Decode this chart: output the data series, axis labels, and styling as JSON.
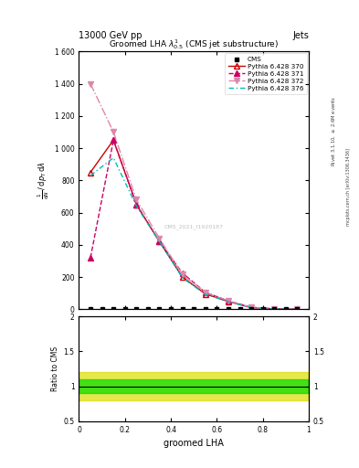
{
  "title_top": "13000 GeV pp",
  "title_right": "Jets",
  "plot_title": "Groomed LHA $\\lambda^{1}_{0.5}$ (CMS jet substructure)",
  "xlabel": "groomed LHA",
  "ylabel_main": "$\\frac{1}{\\mathrm{d}N}\\,/\\,\\mathrm{d}p_\\mathrm{T}\\,\\mathrm{d}\\lambda$",
  "ylabel_ratio": "Ratio to CMS",
  "right_label1": "Rivet 3.1.10, $\\geq$ 2.6M events",
  "right_label2": "mcplots.cern.ch [arXiv:1306.3436]",
  "watermark": "CMS_2021_I1920187",
  "p370_x": [
    0.05,
    0.15,
    0.25,
    0.35,
    0.45,
    0.55,
    0.65,
    0.75,
    0.85,
    0.95
  ],
  "p370_y": [
    850,
    1050,
    650,
    420,
    200,
    95,
    48,
    10,
    2,
    0.5
  ],
  "p371_x": [
    0.05,
    0.15,
    0.25,
    0.35,
    0.45,
    0.55,
    0.65,
    0.75,
    0.85,
    0.95
  ],
  "p371_y": [
    320,
    1050,
    650,
    420,
    225,
    105,
    52,
    12,
    2.5,
    0.5
  ],
  "p372_x": [
    0.05,
    0.15,
    0.25,
    0.35,
    0.45,
    0.55,
    0.65,
    0.75,
    0.85,
    0.95
  ],
  "p372_y": [
    1400,
    1100,
    680,
    440,
    215,
    105,
    52,
    12,
    2.5,
    0.5
  ],
  "p376_x": [
    0.05,
    0.15,
    0.25,
    0.35,
    0.45,
    0.55,
    0.65,
    0.75,
    0.85,
    0.95
  ],
  "p376_y": [
    830,
    940,
    640,
    420,
    195,
    93,
    47,
    10,
    2,
    0.5
  ],
  "cms_x": [
    0.05,
    0.1,
    0.15,
    0.2,
    0.25,
    0.3,
    0.35,
    0.4,
    0.45,
    0.5,
    0.55,
    0.6,
    0.65,
    0.7,
    0.75,
    0.8,
    0.85,
    0.9,
    0.95
  ],
  "ylim_main": [
    0,
    1600
  ],
  "ylim_ratio": [
    0.5,
    2.0
  ],
  "ratio_green_lo": 0.9,
  "ratio_green_hi": 1.1,
  "ratio_yellow_lo": 0.8,
  "ratio_yellow_hi": 1.2,
  "color_cms": "#000000",
  "color_370": "#cc0000",
  "color_371": "#cc0066",
  "color_372": "#dd88aa",
  "color_376": "#00bbbb",
  "color_green": "#00dd00",
  "color_yellow": "#dddd00",
  "yticks_main": [
    0,
    200,
    400,
    600,
    800,
    1000,
    1200,
    1400,
    1600
  ],
  "ytick_labels_main": [
    "0",
    "200",
    "400",
    "600",
    "800",
    "1 000",
    "1 200",
    "1 400",
    "1 600"
  ],
  "yticks_ratio": [
    0.5,
    1.0,
    1.5,
    2.0
  ],
  "ytick_labels_ratio": [
    "0.5",
    "1",
    "1.5",
    "2"
  ]
}
